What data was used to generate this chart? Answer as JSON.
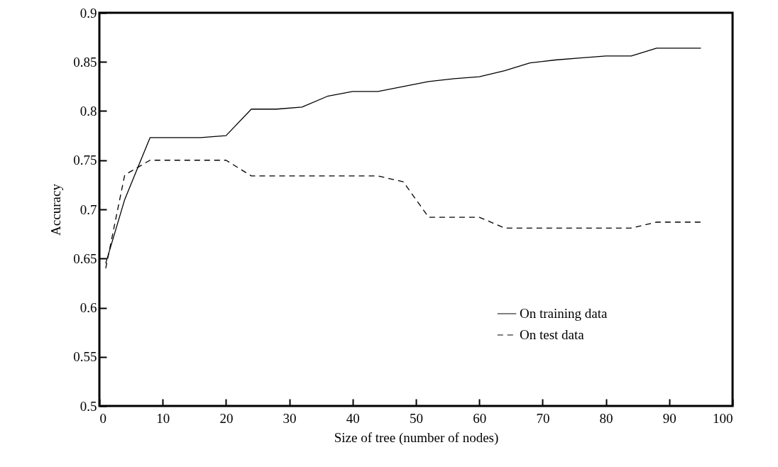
{
  "chart_data": {
    "type": "line",
    "xlabel": "Size of tree (number of nodes)",
    "ylabel": "Accuracy",
    "xlim": [
      0,
      100
    ],
    "xticks": [
      0,
      10,
      20,
      30,
      40,
      50,
      60,
      70,
      80,
      90,
      100
    ],
    "ylim": [
      0.5,
      0.9
    ],
    "yticks": [
      0.5,
      0.55,
      0.6,
      0.65,
      0.7,
      0.75,
      0.8,
      0.85,
      0.9
    ],
    "grid": false,
    "legend": "bottom right",
    "marker": "none",
    "series": [
      {
        "name": "On training data",
        "color": "#000000",
        "line_style": "solid",
        "x": [
          1,
          4,
          8,
          16,
          20,
          24,
          28,
          32,
          36,
          40,
          44,
          48,
          52,
          56,
          60,
          64,
          68,
          72,
          76,
          80,
          84,
          88,
          95
        ],
        "values": [
          0.645,
          0.71,
          0.773,
          0.773,
          0.775,
          0.802,
          0.802,
          0.804,
          0.815,
          0.82,
          0.82,
          0.825,
          0.83,
          0.833,
          0.835,
          0.841,
          0.849,
          0.852,
          0.854,
          0.856,
          0.856,
          0.864,
          0.864
        ]
      },
      {
        "name": "On test data",
        "color": "#000000",
        "line_style": "dashed",
        "x": [
          1,
          4,
          8,
          20,
          24,
          44,
          48,
          52,
          60,
          64,
          84,
          88,
          95
        ],
        "values": [
          0.64,
          0.735,
          0.75,
          0.75,
          0.734,
          0.734,
          0.728,
          0.692,
          0.692,
          0.681,
          0.681,
          0.687,
          0.687
        ]
      }
    ]
  }
}
